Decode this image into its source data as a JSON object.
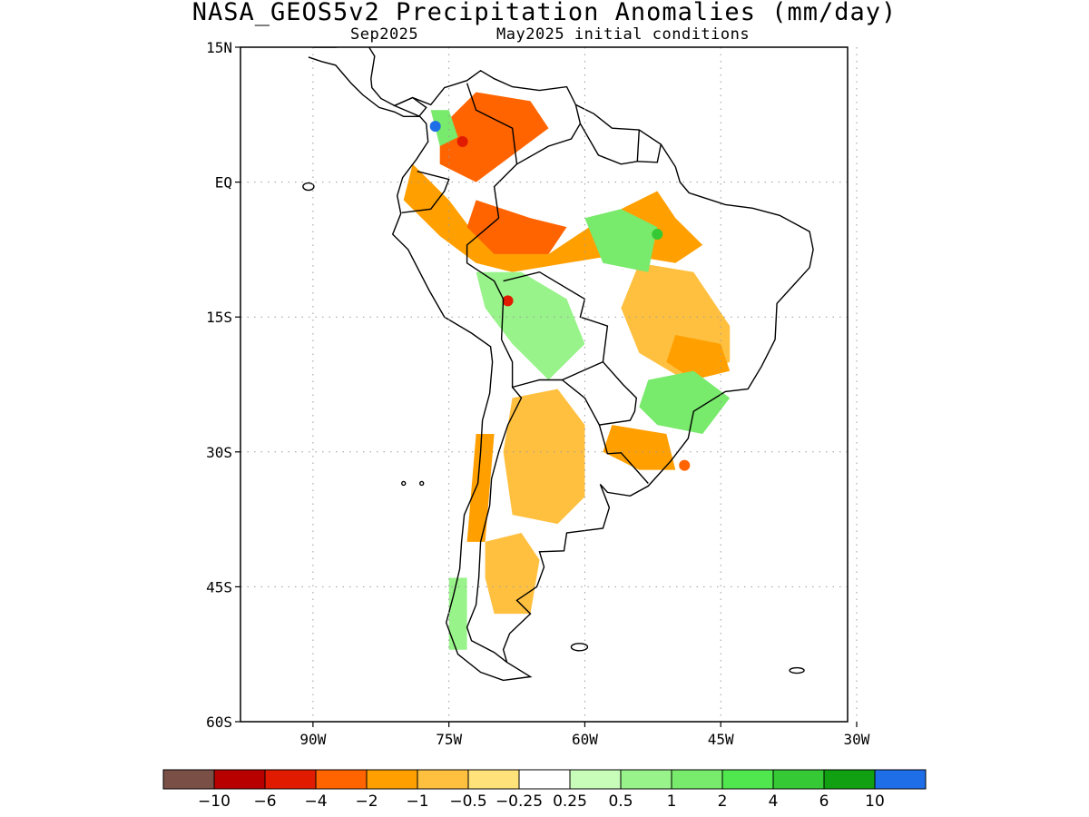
{
  "title": "NASA_GEOS5v2 Precipitation Anomalies (mm/day)",
  "subtitle": {
    "valid": "Sep2025",
    "init": "May2025 initial conditions"
  },
  "map": {
    "lon_range": [
      -98,
      -31
    ],
    "lat_range": [
      -60,
      15
    ],
    "lat_ticks": [
      {
        "value": 15,
        "label": "15N"
      },
      {
        "value": 0,
        "label": "EQ"
      },
      {
        "value": -15,
        "label": "15S"
      },
      {
        "value": -30,
        "label": "30S"
      },
      {
        "value": -45,
        "label": "45S"
      },
      {
        "value": -60,
        "label": "60S"
      }
    ],
    "lon_ticks": [
      {
        "value": -90,
        "label": "90W"
      },
      {
        "value": -75,
        "label": "75W"
      },
      {
        "value": -60,
        "label": "60W"
      },
      {
        "value": -45,
        "label": "45W"
      },
      {
        "value": -30,
        "label": "30W"
      }
    ],
    "grid": true,
    "anomaly_patches": [
      {
        "level": "-2",
        "pts": [
          [
            -76,
            6
          ],
          [
            -72,
            10
          ],
          [
            -66,
            9
          ],
          [
            -64,
            6
          ],
          [
            -68,
            3
          ],
          [
            -72,
            0
          ],
          [
            -76,
            2
          ]
        ]
      },
      {
        "level": "-1",
        "pts": [
          [
            -79,
            2
          ],
          [
            -75,
            -2
          ],
          [
            -72,
            -6
          ],
          [
            -64,
            -8
          ],
          [
            -58,
            -4
          ],
          [
            -52,
            -1
          ],
          [
            -50,
            -4
          ],
          [
            -47,
            -7
          ],
          [
            -50,
            -9
          ],
          [
            -56,
            -8
          ],
          [
            -62,
            -9
          ],
          [
            -68,
            -10
          ],
          [
            -72,
            -9
          ],
          [
            -76,
            -6
          ],
          [
            -80,
            -2
          ]
        ]
      },
      {
        "level": "-2",
        "pts": [
          [
            -72,
            -2
          ],
          [
            -66,
            -4
          ],
          [
            -62,
            -5
          ],
          [
            -64,
            -8
          ],
          [
            -70,
            -8
          ],
          [
            -73,
            -5
          ]
        ]
      },
      {
        "level": "-0.5",
        "pts": [
          [
            -54,
            -9
          ],
          [
            -48,
            -10
          ],
          [
            -44,
            -16
          ],
          [
            -44,
            -20
          ],
          [
            -49,
            -22
          ],
          [
            -54,
            -19
          ],
          [
            -56,
            -14
          ]
        ]
      },
      {
        "level": "-1",
        "pts": [
          [
            -50,
            -17
          ],
          [
            -45,
            -18
          ],
          [
            -44,
            -21
          ],
          [
            -48,
            -22
          ],
          [
            -51,
            -20
          ]
        ]
      },
      {
        "level": "2",
        "pts": [
          [
            -77,
            8
          ],
          [
            -76,
            4
          ],
          [
            -74,
            5
          ],
          [
            -75,
            8
          ]
        ]
      },
      {
        "level": "2",
        "pts": [
          [
            -60,
            -4
          ],
          [
            -56,
            -3
          ],
          [
            -52,
            -5
          ],
          [
            -53,
            -10
          ],
          [
            -58,
            -9
          ]
        ]
      },
      {
        "level": "1",
        "pts": [
          [
            -72,
            -10
          ],
          [
            -67,
            -10
          ],
          [
            -62,
            -13
          ],
          [
            -60,
            -18
          ],
          [
            -64,
            -22
          ],
          [
            -68,
            -18
          ],
          [
            -71,
            -14
          ]
        ]
      },
      {
        "level": "2",
        "pts": [
          [
            -53,
            -22
          ],
          [
            -48,
            -21
          ],
          [
            -44,
            -24
          ],
          [
            -47,
            -28
          ],
          [
            -52,
            -27
          ],
          [
            -54,
            -25
          ]
        ]
      },
      {
        "level": "-1",
        "pts": [
          [
            -57,
            -27
          ],
          [
            -51,
            -28
          ],
          [
            -50,
            -32
          ],
          [
            -54,
            -32
          ],
          [
            -58,
            -30
          ]
        ]
      },
      {
        "level": "-0.5",
        "pts": [
          [
            -68,
            -24
          ],
          [
            -63,
            -23
          ],
          [
            -60,
            -27
          ],
          [
            -60,
            -35
          ],
          [
            -63,
            -38
          ],
          [
            -68,
            -37
          ],
          [
            -69,
            -30
          ]
        ]
      },
      {
        "level": "-1",
        "pts": [
          [
            -72,
            -28
          ],
          [
            -70,
            -28
          ],
          [
            -71,
            -40
          ],
          [
            -73,
            -40
          ]
        ]
      },
      {
        "level": "-0.5",
        "pts": [
          [
            -71,
            -40
          ],
          [
            -67,
            -39
          ],
          [
            -65,
            -42
          ],
          [
            -66,
            -48
          ],
          [
            -70,
            -48
          ],
          [
            -71,
            -44
          ]
        ]
      },
      {
        "level": "1",
        "pts": [
          [
            -75,
            -44
          ],
          [
            -73,
            -44
          ],
          [
            -73,
            -52
          ],
          [
            -75,
            -52
          ]
        ]
      }
    ]
  },
  "colorbar": {
    "colors": [
      "#7a5046",
      "#b90000",
      "#e11b00",
      "#ff6400",
      "#ff9f00",
      "#ffc040",
      "#ffe27a",
      "#ffffff",
      "#c7fcb9",
      "#98f38a",
      "#78ea6c",
      "#4fe64e",
      "#35c935",
      "#11a011",
      "#1e6ee8"
    ],
    "labels": [
      "−10",
      "−6",
      "−4",
      "−2",
      "−1",
      "−0.5",
      "−0.25",
      "0.25",
      "0.5",
      "1",
      "2",
      "4",
      "6",
      "10"
    ]
  }
}
